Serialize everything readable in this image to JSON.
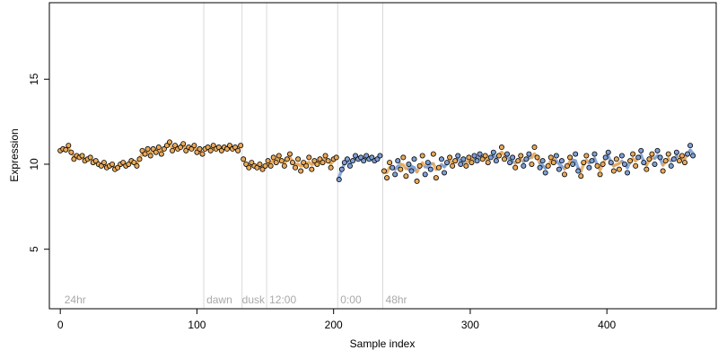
{
  "chart_data": {
    "type": "scatter",
    "title": "",
    "xlabel": "Sample index",
    "ylabel": "Expression",
    "xlim": [
      -8,
      480
    ],
    "ylim": [
      1.5,
      19.5
    ],
    "x_ticks": [
      0,
      100,
      200,
      300,
      400
    ],
    "x_tick_labels": [
      "0",
      "100",
      "200",
      "300",
      "400"
    ],
    "y_ticks": [
      5,
      10,
      15
    ],
    "y_tick_labels": [
      "5",
      "10",
      "15"
    ],
    "grid": false,
    "colors": {
      "orange": "#e8a95a",
      "blue": "#7f9fd4",
      "segment_line": "#d9d9d9",
      "segment_text": "#a9a9a9",
      "point_edge": "#000000"
    },
    "segment_boundaries": [
      105,
      133,
      151,
      203,
      236
    ],
    "segment_labels": [
      {
        "text": "24hr",
        "x": 3
      },
      {
        "text": "dawn",
        "x": 107
      },
      {
        "text": "dusk",
        "x": 133
      },
      {
        "text": "12:00",
        "x": 153
      },
      {
        "text": "0:00",
        "x": 205
      },
      {
        "text": "48hr",
        "x": 238
      }
    ],
    "series": [
      {
        "points": [
          [
            0,
            10.8
          ],
          [
            2,
            10.9
          ],
          [
            4,
            10.85
          ],
          [
            6,
            11.1
          ],
          [
            8,
            10.7
          ],
          [
            10,
            10.3
          ],
          [
            12,
            10.5
          ],
          [
            14,
            10.4
          ],
          [
            16,
            10.5
          ],
          [
            18,
            10.2
          ],
          [
            20,
            10.3
          ],
          [
            22,
            10.4
          ],
          [
            24,
            10.1
          ],
          [
            26,
            10.2
          ],
          [
            28,
            10.0
          ],
          [
            30,
            9.9
          ],
          [
            32,
            10.1
          ],
          [
            34,
            9.8
          ],
          [
            36,
            9.9
          ],
          [
            38,
            10.0
          ],
          [
            40,
            9.7
          ],
          [
            42,
            9.8
          ],
          [
            44,
            10.0
          ],
          [
            46,
            10.1
          ],
          [
            48,
            9.9
          ],
          [
            50,
            10.0
          ],
          [
            52,
            10.2
          ],
          [
            54,
            10.1
          ],
          [
            56,
            9.9
          ],
          [
            58,
            10.3
          ],
          [
            60,
            10.8
          ],
          [
            62,
            10.6
          ],
          [
            64,
            10.9
          ],
          [
            66,
            10.5
          ],
          [
            68,
            10.9
          ],
          [
            70,
            10.7
          ],
          [
            72,
            11.0
          ],
          [
            74,
            10.6
          ],
          [
            76,
            10.9
          ],
          [
            78,
            11.1
          ],
          [
            80,
            11.3
          ],
          [
            82,
            10.8
          ],
          [
            84,
            11.1
          ],
          [
            86,
            10.9
          ],
          [
            88,
            11.0
          ],
          [
            90,
            11.2
          ],
          [
            92,
            10.8
          ],
          [
            94,
            11.0
          ],
          [
            96,
            10.9
          ],
          [
            98,
            11.1
          ],
          [
            100,
            10.7
          ],
          [
            102,
            10.9
          ],
          [
            104,
            10.6
          ]
        ],
        "color": "orange"
      },
      {
        "points": [
          [
            106,
            10.9
          ],
          [
            108,
            11.0
          ],
          [
            110,
            10.8
          ],
          [
            112,
            11.1
          ],
          [
            114,
            10.9
          ],
          [
            116,
            11.0
          ],
          [
            118,
            10.8
          ],
          [
            120,
            11.0
          ],
          [
            122,
            10.9
          ],
          [
            124,
            11.1
          ],
          [
            126,
            10.9
          ],
          [
            128,
            11.0
          ],
          [
            130,
            10.8
          ],
          [
            132,
            11.1
          ]
        ],
        "color": "orange"
      },
      {
        "points": [
          [
            134,
            10.3
          ],
          [
            136,
            10.0
          ],
          [
            138,
            9.8
          ],
          [
            140,
            10.1
          ],
          [
            142,
            9.9
          ],
          [
            144,
            9.8
          ],
          [
            146,
            10.0
          ],
          [
            148,
            9.7
          ],
          [
            150,
            9.9
          ],
          [
            152,
            10.2
          ],
          [
            154,
            9.9
          ],
          [
            156,
            10.4
          ],
          [
            158,
            10.1
          ],
          [
            160,
            10.5
          ],
          [
            162,
            10.2
          ],
          [
            164,
            9.9
          ],
          [
            166,
            10.3
          ],
          [
            168,
            10.6
          ],
          [
            170,
            10.1
          ],
          [
            172,
            9.8
          ],
          [
            174,
            10.3
          ],
          [
            176,
            9.6
          ],
          [
            178,
            10.1
          ],
          [
            180,
            9.9
          ],
          [
            182,
            10.4
          ],
          [
            184,
            9.7
          ],
          [
            186,
            10.2
          ],
          [
            188,
            10.0
          ],
          [
            190,
            10.3
          ],
          [
            192,
            10.1
          ],
          [
            194,
            10.5
          ],
          [
            196,
            10.2
          ],
          [
            198,
            9.8
          ],
          [
            200,
            10.3
          ],
          [
            202,
            10.4
          ]
        ],
        "color": "orange"
      },
      {
        "points": [
          [
            204,
            9.1
          ],
          [
            206,
            9.7
          ],
          [
            208,
            10.1
          ],
          [
            210,
            10.3
          ],
          [
            212,
            9.9
          ],
          [
            214,
            10.2
          ],
          [
            216,
            10.5
          ],
          [
            218,
            10.3
          ],
          [
            220,
            10.4
          ],
          [
            222,
            10.2
          ],
          [
            224,
            10.5
          ],
          [
            226,
            10.3
          ],
          [
            228,
            10.4
          ],
          [
            230,
            10.2
          ],
          [
            232,
            10.3
          ],
          [
            234,
            10.5
          ]
        ],
        "color": "blue"
      },
      {
        "points": [
          [
            237,
            9.6
          ],
          [
            239,
            9.2
          ],
          [
            241,
            10.1
          ],
          [
            243,
            9.8
          ],
          [
            245,
            9.4
          ],
          [
            247,
            10.2
          ],
          [
            249,
            9.7
          ],
          [
            251,
            10.4
          ],
          [
            253,
            9.3
          ],
          [
            255,
            10.0
          ],
          [
            257,
            9.6
          ],
          [
            259,
            10.3
          ],
          [
            261,
            9.0
          ],
          [
            263,
            9.9
          ],
          [
            265,
            10.5
          ],
          [
            267,
            9.4
          ],
          [
            269,
            10.1
          ],
          [
            271,
            9.7
          ],
          [
            273,
            10.6
          ],
          [
            275,
            9.2
          ],
          [
            277,
            9.8
          ],
          [
            279,
            10.3
          ],
          [
            281,
            9.5
          ],
          [
            283,
            10.1
          ],
          [
            285,
            10.4
          ],
          [
            287,
            9.9
          ],
          [
            289,
            10.2
          ],
          [
            291,
            10.5
          ],
          [
            293,
            10.0
          ],
          [
            295,
            10.3
          ],
          [
            297,
            9.9
          ],
          [
            299,
            10.4
          ],
          [
            301,
            10.1
          ],
          [
            303,
            10.5
          ],
          [
            305,
            10.2
          ],
          [
            307,
            10.6
          ],
          [
            309,
            10.3
          ],
          [
            311,
            10.5
          ],
          [
            313,
            10.1
          ],
          [
            315,
            10.4
          ],
          [
            317,
            10.7
          ],
          [
            319,
            10.2
          ],
          [
            321,
            10.5
          ],
          [
            323,
            11.0
          ],
          [
            325,
            10.3
          ],
          [
            327,
            10.6
          ],
          [
            329,
            10.1
          ],
          [
            331,
            10.4
          ],
          [
            333,
            9.8
          ],
          [
            335,
            10.2
          ],
          [
            337,
            10.5
          ],
          [
            339,
            9.9
          ],
          [
            341,
            10.3
          ],
          [
            343,
            10.6
          ],
          [
            345,
            10.0
          ],
          [
            347,
            11.0
          ],
          [
            349,
            10.4
          ],
          [
            351,
            9.8
          ],
          [
            353,
            10.2
          ],
          [
            355,
            9.5
          ],
          [
            357,
            9.9
          ],
          [
            359,
            10.4
          ],
          [
            361,
            10.1
          ],
          [
            363,
            10.5
          ],
          [
            365,
            9.7
          ],
          [
            367,
            10.2
          ],
          [
            369,
            9.4
          ],
          [
            371,
            9.9
          ],
          [
            373,
            10.4
          ],
          [
            375,
            10.0
          ],
          [
            377,
            10.6
          ],
          [
            379,
            9.6
          ],
          [
            381,
            9.3
          ],
          [
            383,
            10.1
          ],
          [
            385,
            10.5
          ],
          [
            387,
            9.8
          ],
          [
            389,
            10.2
          ],
          [
            391,
            10.6
          ],
          [
            393,
            9.9
          ],
          [
            395,
            9.4
          ],
          [
            397,
            10.0
          ],
          [
            399,
            10.4
          ],
          [
            401,
            10.7
          ],
          [
            403,
            10.1
          ],
          [
            405,
            9.6
          ],
          [
            407,
            10.3
          ],
          [
            409,
            9.7
          ],
          [
            411,
            10.5
          ],
          [
            413,
            10.0
          ],
          [
            415,
            9.5
          ],
          [
            417,
            10.2
          ],
          [
            419,
            10.6
          ],
          [
            421,
            9.9
          ],
          [
            423,
            10.4
          ],
          [
            425,
            10.8
          ],
          [
            427,
            10.1
          ],
          [
            429,
            9.7
          ],
          [
            431,
            10.3
          ],
          [
            433,
            10.6
          ],
          [
            435,
            10.0
          ],
          [
            437,
            10.8
          ],
          [
            439,
            10.4
          ],
          [
            441,
            9.6
          ],
          [
            443,
            10.2
          ],
          [
            445,
            10.6
          ],
          [
            447,
            9.9
          ],
          [
            449,
            10.3
          ],
          [
            451,
            10.7
          ],
          [
            453,
            10.2
          ],
          [
            455,
            10.5
          ],
          [
            457,
            10.1
          ],
          [
            459,
            10.6
          ],
          [
            461,
            11.1
          ],
          [
            463,
            10.5
          ]
        ],
        "color": "mixed"
      }
    ]
  }
}
